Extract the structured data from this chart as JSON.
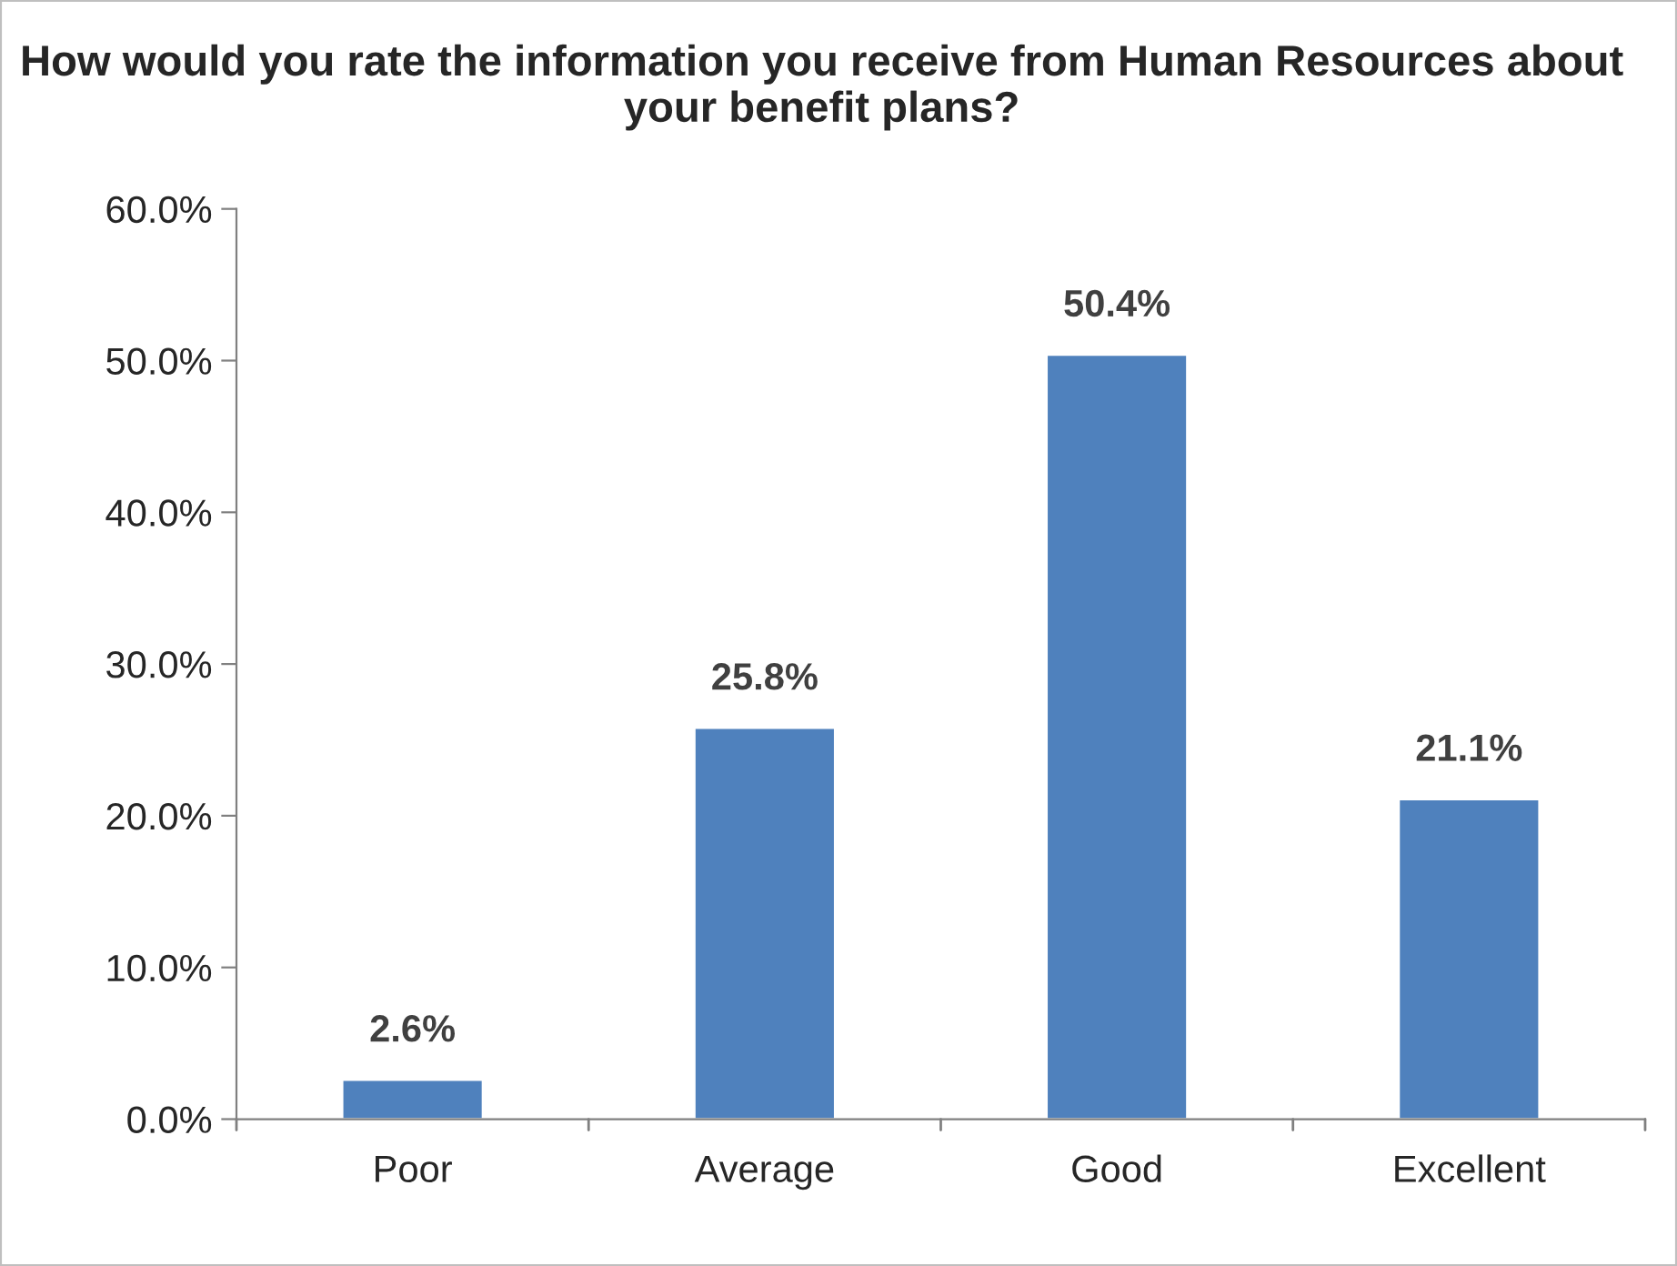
{
  "chart_data": {
    "type": "bar",
    "title": "How would you rate the information you receive from Human Resources about your benefit plans?",
    "categories": [
      "Poor",
      "Average",
      "Good",
      "Excellent"
    ],
    "values": [
      2.6,
      25.8,
      50.4,
      21.1
    ],
    "value_labels": [
      "2.6%",
      "25.8%",
      "50.4%",
      "21.1%"
    ],
    "color": "#4f81bd",
    "ylim": [
      0,
      60
    ],
    "yticks": [
      {
        "value": 0,
        "label": "0.0%"
      },
      {
        "value": 10,
        "label": "10.0%"
      },
      {
        "value": 20,
        "label": "20.0%"
      },
      {
        "value": 30,
        "label": "30.0%"
      },
      {
        "value": 40,
        "label": "40.0%"
      },
      {
        "value": 50,
        "label": "50.0%"
      },
      {
        "value": 60,
        "label": "60.0%"
      }
    ],
    "grid": false,
    "legend": false
  }
}
